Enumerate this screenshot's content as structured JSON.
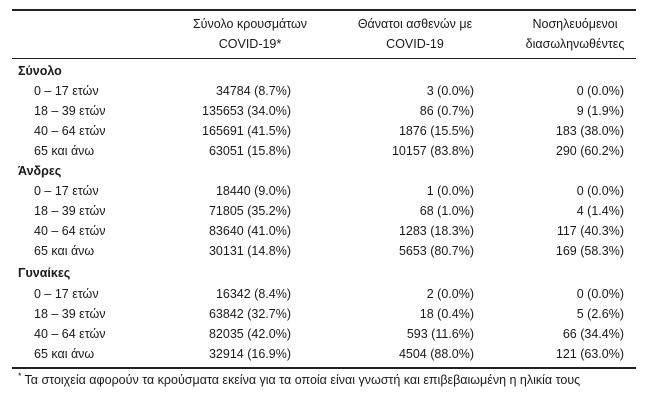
{
  "headers": {
    "col1_line1": "Σύνολο κρουσμάτων",
    "col1_line2": "COVID-19*",
    "col2_line1": "Θάνατοι ασθενών με",
    "col2_line2": "COVID-19",
    "col3_line1": "Νοσηλευόμενοι",
    "col3_line2": "διασωληνωθέντες"
  },
  "groups": [
    {
      "title": "Σύνολο",
      "rows": [
        {
          "label": "0 – 17 ετών",
          "cases": "34784 (8.7%)",
          "deaths": "3 (0.0%)",
          "intubated": "0 (0.0%)"
        },
        {
          "label": "18 – 39 ετών",
          "cases": "135653 (34.0%)",
          "deaths": "86 (0.7%)",
          "intubated": "9 (1.9%)"
        },
        {
          "label": "40 – 64 ετών",
          "cases": "165691 (41.5%)",
          "deaths": "1876 (15.5%)",
          "intubated": "183 (38.0%)"
        },
        {
          "label": "65 και άνω",
          "cases": "63051 (15.8%)",
          "deaths": "10157 (83.8%)",
          "intubated": "290 (60.2%)"
        }
      ]
    },
    {
      "title": "Άνδρες",
      "rows": [
        {
          "label": "0 – 17 ετών",
          "cases": "18440 (9.0%)",
          "deaths": "1 (0.0%)",
          "intubated": "0 (0.0%)"
        },
        {
          "label": "18 – 39 ετών",
          "cases": "71805 (35.2%)",
          "deaths": "68 (1.0%)",
          "intubated": "4 (1.4%)"
        },
        {
          "label": "40 – 64 ετών",
          "cases": "83640 (41.0%)",
          "deaths": "1283 (18.3%)",
          "intubated": "117 (40.3%)"
        },
        {
          "label": "65 και άνω",
          "cases": "30131 (14.8%)",
          "deaths": "5653 (80.7%)",
          "intubated": "169 (58.3%)"
        }
      ]
    },
    {
      "title": "Γυναίκες",
      "rows": [
        {
          "label": "0 – 17 ετών",
          "cases": "16342 (8.4%)",
          "deaths": "2 (0.0%)",
          "intubated": "0 (0.0%)"
        },
        {
          "label": "18 – 39 ετών",
          "cases": "63842 (32.7%)",
          "deaths": "18 (0.4%)",
          "intubated": "5 (2.6%)"
        },
        {
          "label": "40 – 64 ετών",
          "cases": "82035 (42.0%)",
          "deaths": "593 (11.6%)",
          "intubated": "66 (34.4%)"
        },
        {
          "label": "65 και άνω",
          "cases": "32914 (16.9%)",
          "deaths": "4504 (88.0%)",
          "intubated": "121 (63.0%)"
        }
      ]
    }
  ],
  "footnote": {
    "marker": "*",
    "text": "Τα στοιχεία αφορούν τα κρούσματα εκείνα για τα οποία είναι γνωστή και επιβεβαιωμένη η ηλικία τους"
  }
}
